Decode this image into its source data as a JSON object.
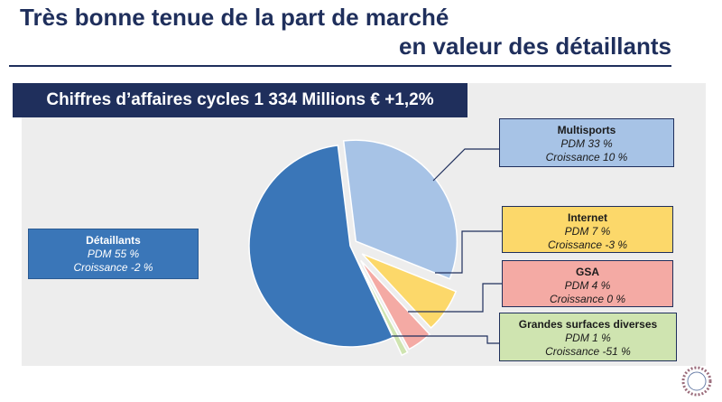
{
  "title_line1": "Très bonne tenue de la part de marché",
  "title_line2": "en valeur des détaillants",
  "banner": "Chiffres d’affaires cycles 1 334 Millions € +1,2%",
  "colors": {
    "navy": "#1f2f5c",
    "detaillants": "#3a76b8",
    "multisports": "#a7c3e6",
    "internet": "#fcd86a",
    "gsa": "#f4aaa4",
    "gsd": "#cfe4b0"
  },
  "chart_data": {
    "type": "pie",
    "series": [
      {
        "name": "Détaillants",
        "value": 55,
        "pdm_label": "PDM 55 %",
        "growth_label": "Croissance  -2 %",
        "color": "#3a76b8"
      },
      {
        "name": "Multisports",
        "value": 33,
        "pdm_label": "PDM 33 %",
        "growth_label": "Croissance  10 %",
        "color": "#a7c3e6"
      },
      {
        "name": "Internet",
        "value": 7,
        "pdm_label": "PDM 7 %",
        "growth_label": "Croissance  -3 %",
        "color": "#fcd86a"
      },
      {
        "name": "GSA",
        "value": 4,
        "pdm_label": "PDM 4 %",
        "growth_label": "Croissance  0 %",
        "color": "#f4aaa4"
      },
      {
        "name": "Grandes surfaces diverses",
        "value": 1,
        "pdm_label": "PDM 1 %",
        "growth_label": "Croissance  -51 %",
        "color": "#cfe4b0"
      }
    ]
  }
}
